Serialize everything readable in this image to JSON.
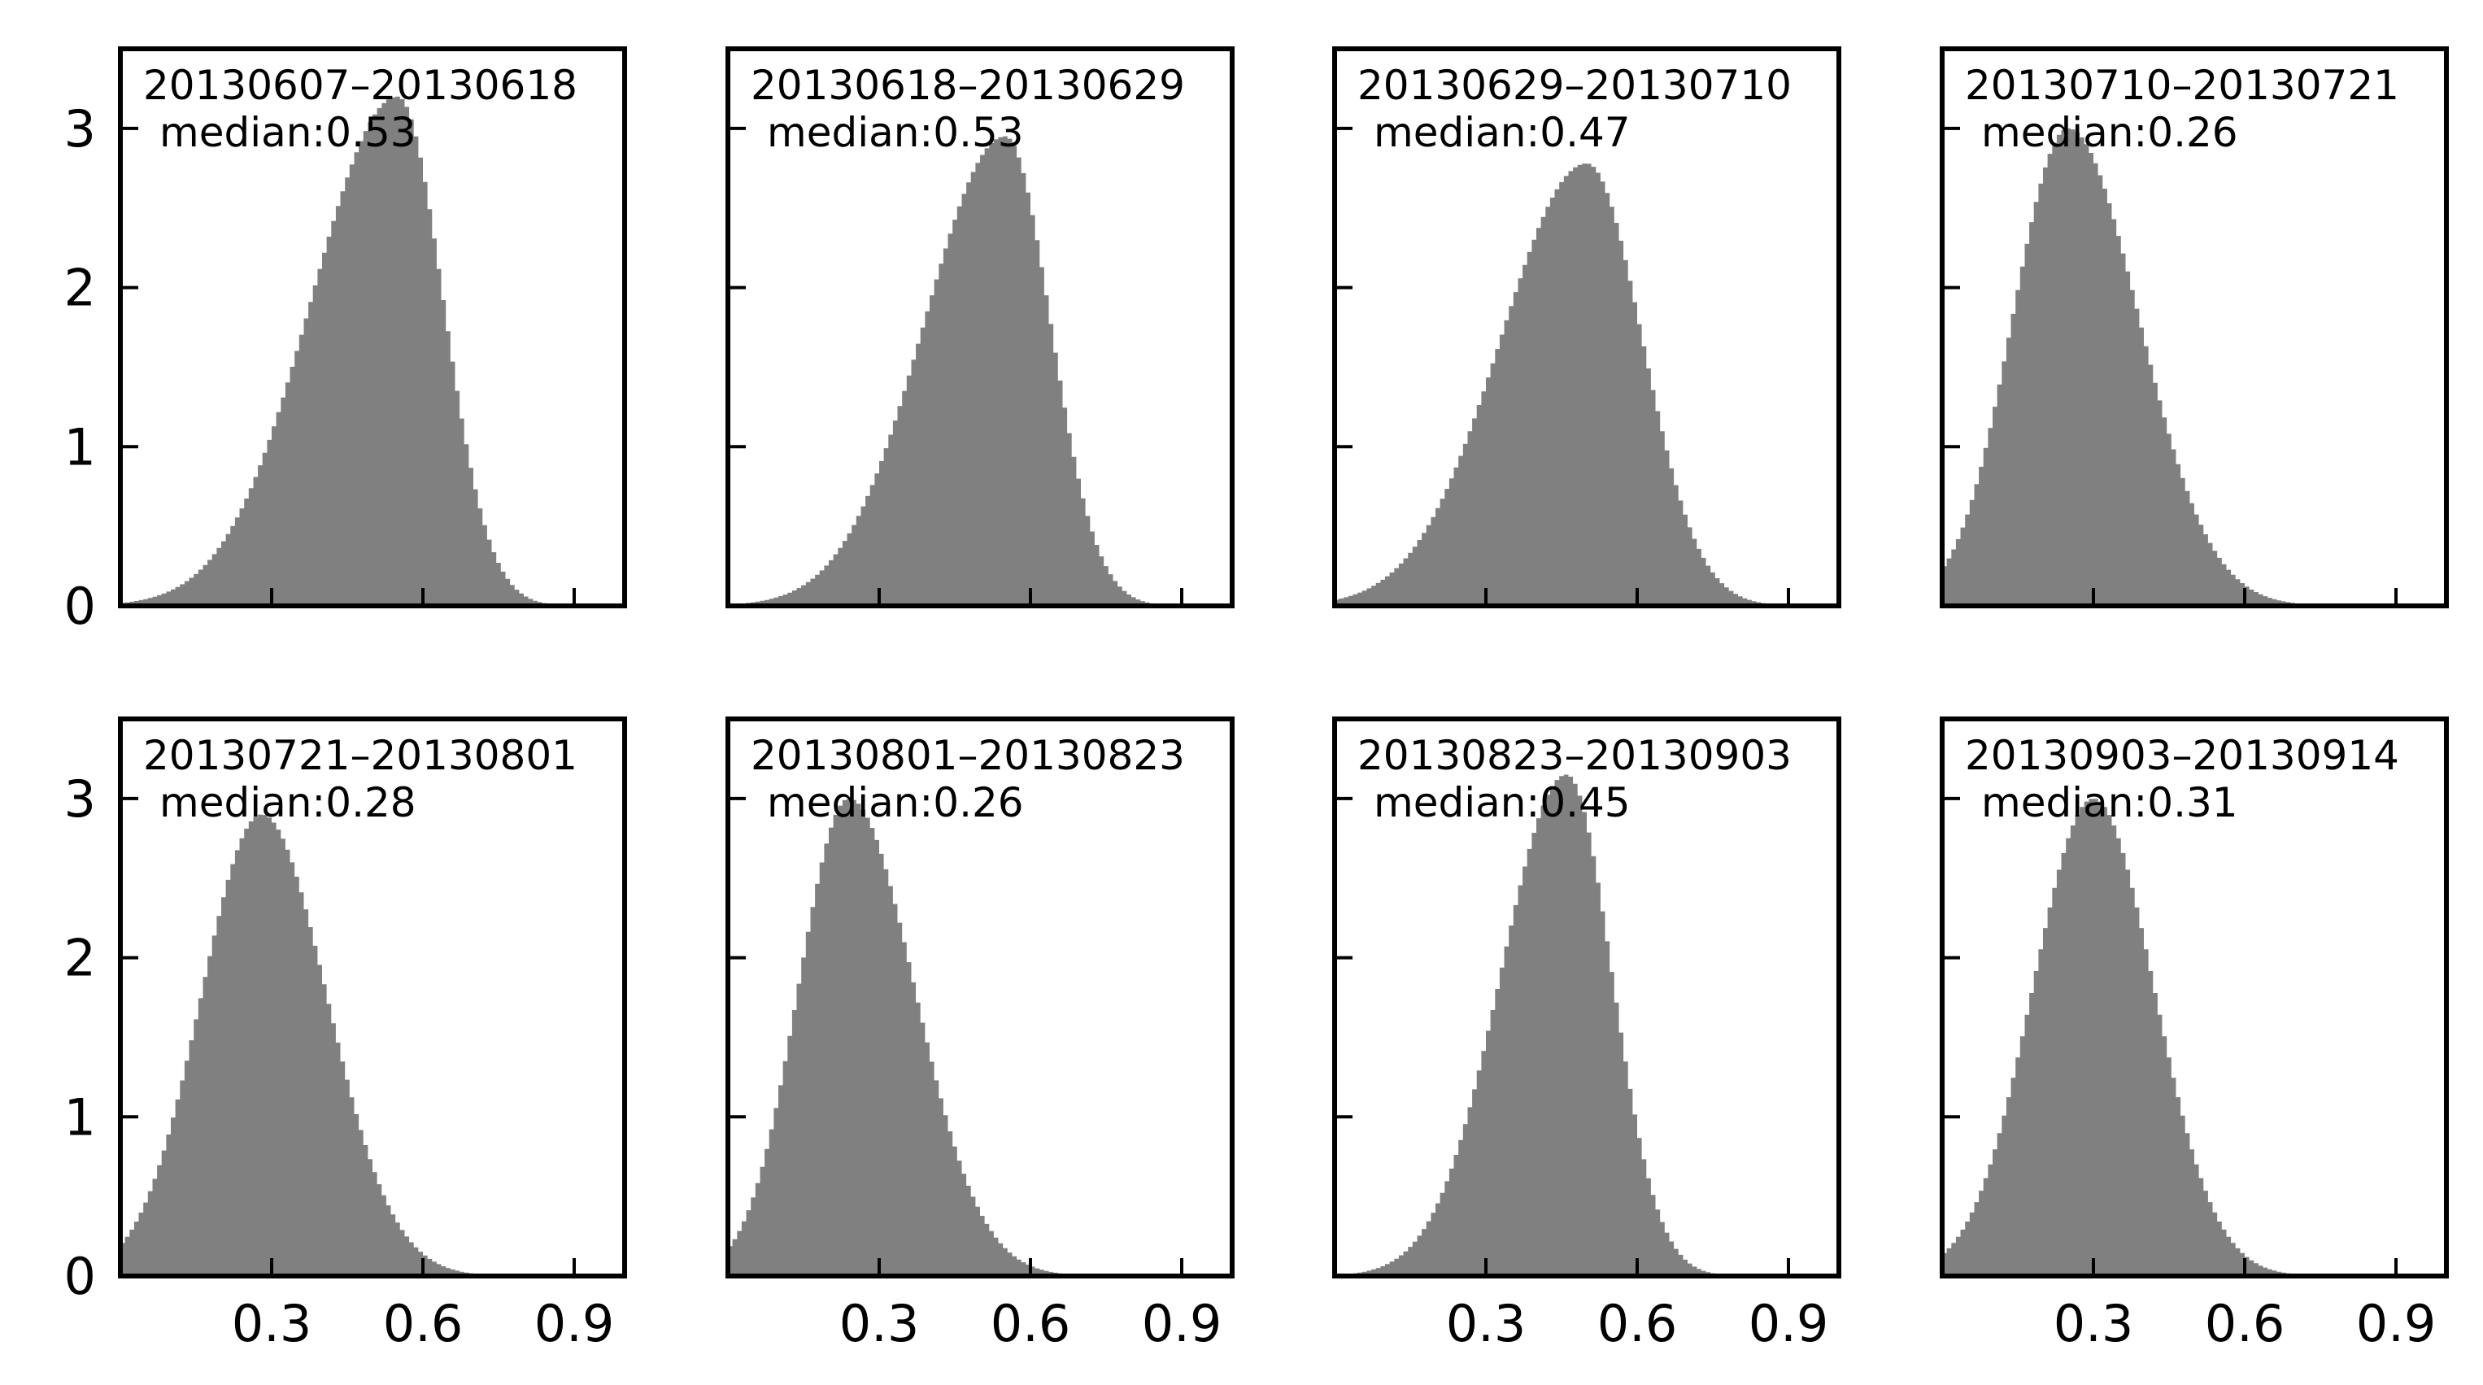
{
  "chart_data": {
    "type": "histogram-grid",
    "xlim": [
      0,
      1
    ],
    "ylim": [
      0,
      3.5
    ],
    "xticks": [
      0.3,
      0.6,
      0.9
    ],
    "yticks": [
      0,
      1,
      2,
      3
    ],
    "xtick_labels": [
      "0.3",
      "0.6",
      "0.9"
    ],
    "ytick_labels": [
      "0",
      "1",
      "2",
      "3"
    ],
    "bar_color": "#808080",
    "panels": [
      {
        "title": "20130607–20130618",
        "median_label": "median:0.53",
        "median": 0.53,
        "peak_x": 0.55,
        "peak_y": 3.2,
        "sigma_left": 0.17,
        "sigma_right": 0.09
      },
      {
        "title": "20130618–20130629",
        "median_label": "median:0.53",
        "median": 0.53,
        "peak_x": 0.55,
        "peak_y": 2.95,
        "sigma_left": 0.16,
        "sigma_right": 0.09
      },
      {
        "title": "20130629–20130710",
        "median_label": "median:0.47",
        "median": 0.47,
        "peak_x": 0.5,
        "peak_y": 2.78,
        "sigma_left": 0.17,
        "sigma_right": 0.11
      },
      {
        "title": "20130710–20130721",
        "median_label": "median:0.26",
        "median": 0.26,
        "peak_x": 0.25,
        "peak_y": 3.0,
        "sigma_left": 0.11,
        "sigma_right": 0.14
      },
      {
        "title": "20130721–20130801",
        "median_label": "median:0.28",
        "median": 0.28,
        "peak_x": 0.28,
        "peak_y": 2.9,
        "sigma_left": 0.12,
        "sigma_right": 0.13
      },
      {
        "title": "20130801–20130823",
        "median_label": "median:0.26",
        "median": 0.26,
        "peak_x": 0.24,
        "peak_y": 3.0,
        "sigma_left": 0.1,
        "sigma_right": 0.13
      },
      {
        "title": "20130823–20130903",
        "median_label": "median:0.45",
        "median": 0.45,
        "peak_x": 0.46,
        "peak_y": 3.15,
        "sigma_left": 0.13,
        "sigma_right": 0.09
      },
      {
        "title": "20130903–20130914",
        "median_label": "median:0.31",
        "median": 0.31,
        "peak_x": 0.3,
        "peak_y": 3.0,
        "sigma_left": 0.12,
        "sigma_right": 0.12
      }
    ]
  }
}
